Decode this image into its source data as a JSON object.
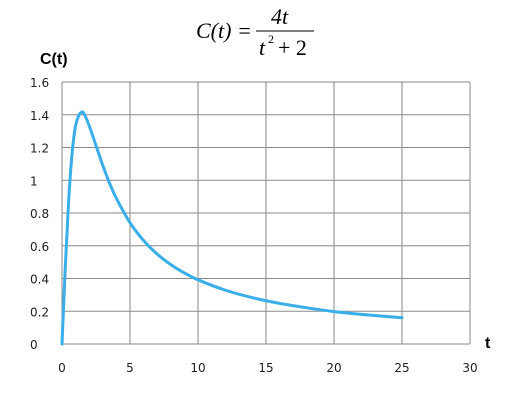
{
  "formula": {
    "lhs": "C(t) =",
    "numerator": "4t",
    "denominator_base": "t",
    "denominator_exp": "2",
    "denominator_rest": "+ 2"
  },
  "chart_data": {
    "type": "line",
    "title": "",
    "xlabel": "t",
    "ylabel": "C(t)",
    "xlim": [
      0,
      30
    ],
    "ylim": [
      0,
      1.6
    ],
    "x_ticks": [
      0,
      5,
      10,
      15,
      20,
      25,
      30
    ],
    "x_tick_labels": [
      "0",
      "5",
      "10",
      "15",
      "20",
      "25",
      "30"
    ],
    "y_ticks": [
      0,
      0.2,
      0.4,
      0.6,
      0.8,
      1.0,
      1.2,
      1.4,
      1.6
    ],
    "y_tick_labels": [
      "0",
      "0.2",
      "0.4",
      "0.6",
      "0.8",
      "1",
      "1.2",
      "1.4",
      "1.6"
    ],
    "grid": true,
    "series": [
      {
        "color": "#39aee8",
        "x": [
          0,
          0.25,
          0.5,
          0.75,
          1,
          1.25,
          1.414,
          1.6,
          2,
          2.5,
          3,
          3.5,
          4,
          5,
          6,
          7,
          8,
          9,
          10,
          12,
          14,
          16,
          18,
          20,
          22,
          25
        ],
        "y": [
          0,
          0.485,
          0.889,
          1.171,
          1.333,
          1.398,
          1.414,
          1.41,
          1.333,
          1.212,
          1.091,
          0.982,
          0.889,
          0.741,
          0.632,
          0.549,
          0.485,
          0.434,
          0.392,
          0.329,
          0.283,
          0.248,
          0.221,
          0.198,
          0.181,
          0.16
        ]
      }
    ]
  }
}
